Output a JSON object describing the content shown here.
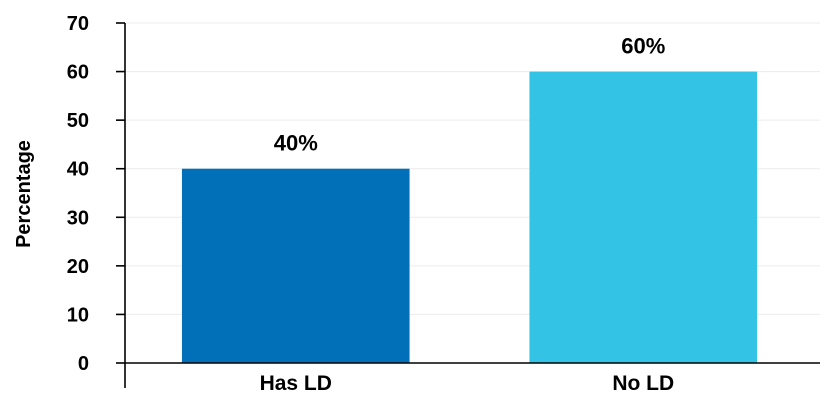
{
  "chart_data": {
    "type": "bar",
    "title": "",
    "xlabel": "",
    "ylabel": "Percentage",
    "categories": [
      "Has LD",
      "No LD"
    ],
    "values": [
      40,
      60
    ],
    "data_labels": [
      "40%",
      "60%"
    ],
    "colors": [
      "#0270b9",
      "#33c4e5"
    ],
    "ylim": [
      0,
      70
    ],
    "yticks": [
      0,
      10,
      20,
      30,
      40,
      50,
      60,
      70
    ],
    "ytick_labels": [
      "0",
      "10",
      "20",
      "30",
      "40",
      "50",
      "60",
      "70"
    ],
    "grid": true,
    "grid_color": "#ececec",
    "legend": "none"
  }
}
